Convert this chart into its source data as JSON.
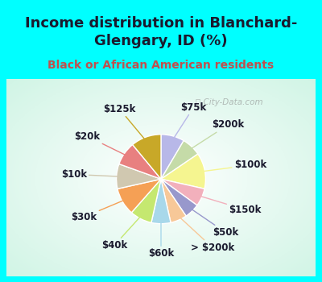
{
  "title": "Income distribution in Blanchard-\nGlengary, ID (%)",
  "subtitle": "Black or African American residents",
  "watermark": "ⓘ City-Data.com",
  "labels": [
    "$75k",
    "$200k",
    "$100k",
    "$150k",
    "$50k",
    "> $200k",
    "$60k",
    "$40k",
    "$30k",
    "$10k",
    "$20k",
    "$125k"
  ],
  "sizes": [
    8.5,
    7.0,
    13.0,
    6.5,
    5.5,
    6.0,
    7.0,
    8.0,
    10.0,
    9.0,
    8.5,
    11.0
  ],
  "colors": [
    "#b8b8e8",
    "#c5dba8",
    "#f5f590",
    "#f2b0bc",
    "#9898cc",
    "#f7c898",
    "#a8d8ea",
    "#c5e870",
    "#f5a055",
    "#d0c8b0",
    "#e88080",
    "#c8a828"
  ],
  "background_outer": "#00ffff",
  "title_color": "#1a1a2e",
  "subtitle_color": "#c0504d",
  "title_fontsize": 13,
  "subtitle_fontsize": 10,
  "label_fontsize": 8.5,
  "label_color": "#1a1a2e"
}
